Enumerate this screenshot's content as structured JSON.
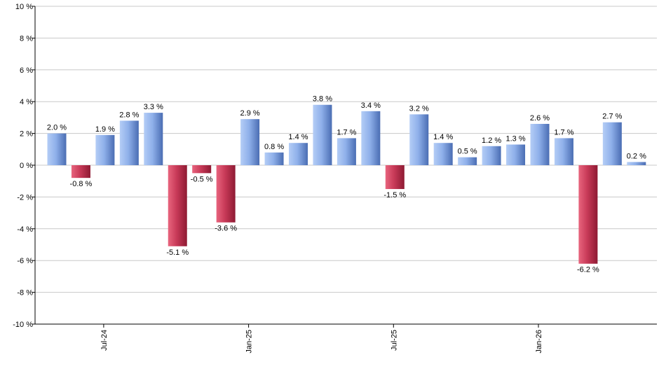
{
  "chart_data": {
    "type": "bar",
    "title": "",
    "xlabel": "",
    "ylabel": "",
    "ylim": [
      -10,
      10
    ],
    "yticks": [
      10,
      8,
      6,
      4,
      2,
      0,
      -2,
      -4,
      -6,
      -8,
      -10
    ],
    "ytick_labels": [
      "10 %",
      "8 %",
      "6 %",
      "4 %",
      "2 %",
      "0 %",
      "-2 %",
      "-4 %",
      "-6 %",
      "-8 %",
      "-10 %"
    ],
    "grid": true,
    "legend": "none",
    "x_tick_labels": [
      {
        "label": "Jul-24",
        "index": 2
      },
      {
        "label": "Jan-25",
        "index": 8
      },
      {
        "label": "Jul-25",
        "index": 14
      },
      {
        "label": "Jan-26",
        "index": 20
      }
    ],
    "values": [
      2.0,
      -0.8,
      1.9,
      2.8,
      3.3,
      -5.1,
      -0.5,
      -3.6,
      2.9,
      0.8,
      1.4,
      3.8,
      1.7,
      3.4,
      -1.5,
      3.2,
      1.4,
      0.5,
      1.2,
      1.3,
      2.6,
      1.7,
      -6.2,
      2.7,
      0.2
    ],
    "value_labels": [
      "2.0 %",
      "-0.8 %",
      "1.9 %",
      "2.8 %",
      "3.3 %",
      "-5.1 %",
      "-0.5 %",
      "-3.6 %",
      "2.9 %",
      "0.8 %",
      "1.4 %",
      "3.8 %",
      "1.7 %",
      "3.4 %",
      "-1.5 %",
      "3.2 %",
      "1.4 %",
      "0.5 %",
      "1.2 %",
      "1.3 %",
      "2.6 %",
      "1.7 %",
      "-6.2 %",
      "2.7 %",
      "0.2 %"
    ],
    "colors": {
      "positive_light": "#b4cdf6",
      "positive_dark": "#4a6db3",
      "negative_light": "#e8657e",
      "negative_dark": "#8e1a33",
      "grid": "#c8c8c8",
      "axis": "#000000"
    }
  }
}
